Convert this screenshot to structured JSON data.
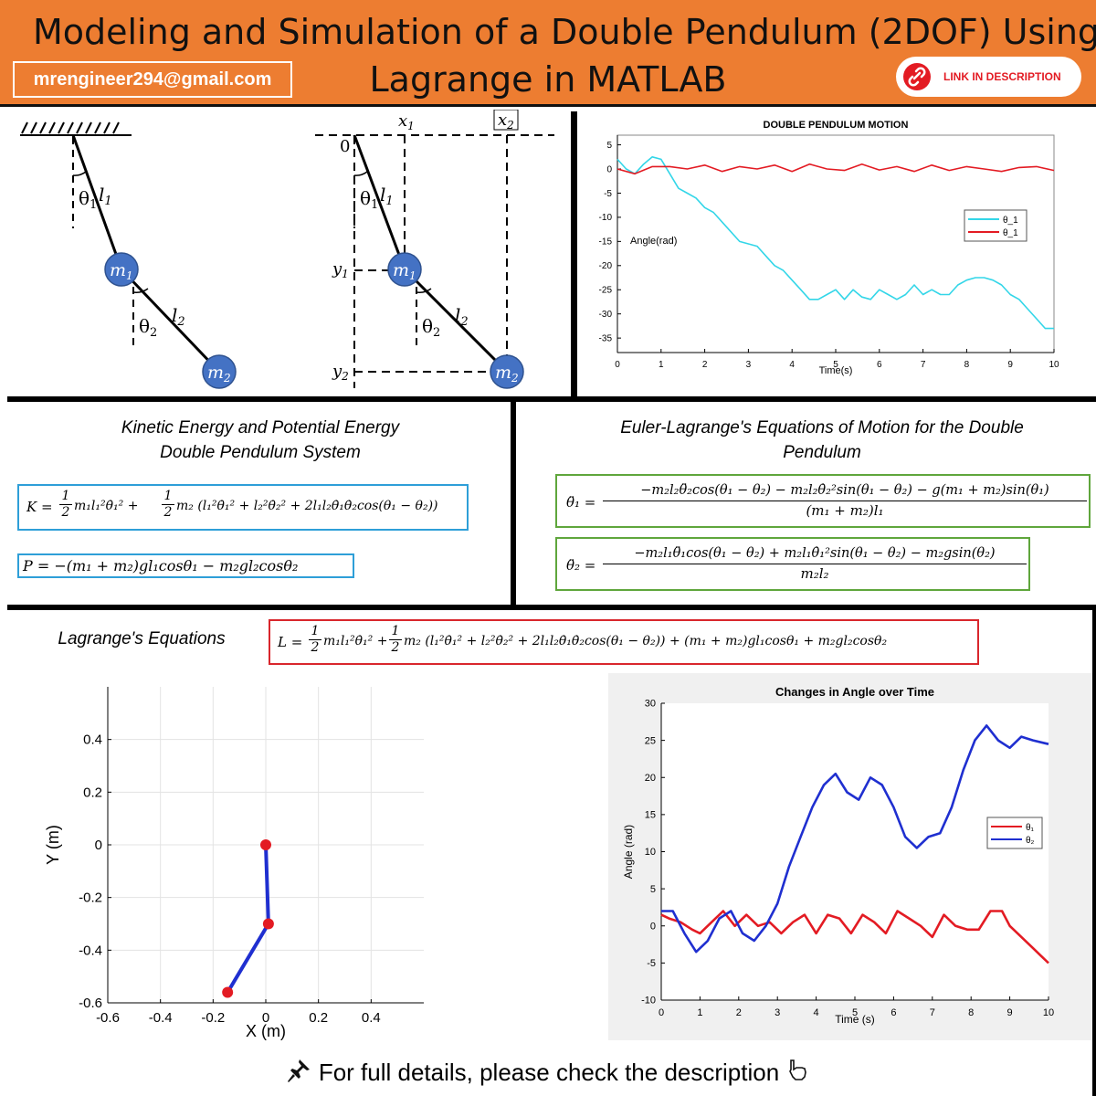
{
  "header": {
    "title_line1": "Modeling and Simulation of a Double Pendulum  (2DOF) Using",
    "title_line2": "Lagrange in MATLAB",
    "email": "mrengineer294@gmail.com",
    "link_label": "LINK IN DESCRIPTION"
  },
  "diagram": {
    "theta1": "θ",
    "theta1_sub": "1",
    "theta2": "θ",
    "theta2_sub": "2",
    "l1": "l",
    "l1_sub": "1",
    "l2": "l",
    "l2_sub": "2",
    "m1": "m",
    "m1_sub": "1",
    "m2": "m",
    "m2_sub": "2",
    "origin": "0",
    "x1": "x",
    "x1_sub": "1",
    "x2": "x",
    "x2_sub": "2",
    "y1": "y",
    "y1_sub": "1",
    "y2": "y",
    "y2_sub": "2"
  },
  "energy": {
    "title_line1": "Kinetic Energy and Potential Energy",
    "title_line2": "Double Pendulum System",
    "K_prefix": "K =",
    "K_body": "m₁l₁²θ̇₁² +",
    "K_body2": "m₂ (l₁²θ̇₁² + l₂²θ̇₂² + 2l₁l₂θ̇₁θ̇₂cos(θ₁ − θ₂))",
    "P": "P = −(m₁ + m₂)gl₁cosθ₁ − m₂gl₂cosθ₂",
    "half_num": "1",
    "half_den": "2"
  },
  "euler": {
    "title_line1": "Euler-Lagrange's Equations of Motion for the Double",
    "title_line2": "Pendulum",
    "eq1_lhs": "θ̈₁ =",
    "eq1_num": "−m₂l₂θ̈₂cos(θ₁ − θ₂) − m₂l₂θ̇₂²sin(θ₁ − θ₂) − g(m₁ + m₂)sin(θ₁)",
    "eq1_den": "(m₁ + m₂)l₁",
    "eq2_lhs": "θ̈₂ =",
    "eq2_num": "−m₂l₁θ̈₁cos(θ₁ − θ₂) + m₂l₁θ̇₁²sin(θ₁ − θ₂) − m₂gsin(θ₂)",
    "eq2_den": "m₂l₂"
  },
  "lagrange": {
    "title": "Lagrange's Equations",
    "L_prefix": "L =",
    "L_body": "m₁l₁²θ̇₁² +",
    "L_body2": "m₂ (l₁²θ̇₁² + l₂²θ̇₂² + 2l₁l₂θ̇₁θ̇₂cos(θ₁ − θ₂)) + (m₁ + m₂)gl₁cosθ₁ + m₂gl₂cosθ₂"
  },
  "footer": {
    "text": "For full details, please check the description"
  },
  "colors": {
    "header_bg": "#ed7d31",
    "pendulum_mass": "#4472c4",
    "box_blue": "#2e9fd8",
    "box_green": "#5fa63c",
    "box_red": "#d9262c",
    "cyan": "#33d6e8",
    "red": "#e31b23",
    "blue": "#1f2fd0"
  },
  "chart_data": [
    {
      "type": "line",
      "title": "DOUBLE PENDULUM MOTION",
      "xlabel": "Time(s)",
      "ylabel": "Angle(rad)",
      "xlim": [
        0,
        10
      ],
      "ylim": [
        -38,
        7
      ],
      "xticks": [
        "0",
        "1",
        "2",
        "3",
        "4",
        "5",
        "6",
        "7",
        "8",
        "9",
        "10"
      ],
      "yticks": [
        "5",
        "0",
        "-5",
        "-10",
        "-15",
        "-20",
        "-25",
        "-30",
        "-35"
      ],
      "legend_position": "right",
      "grid": false,
      "series": [
        {
          "name": "θ_1",
          "color": "#33d6e8",
          "x": [
            0,
            0.2,
            0.4,
            0.6,
            0.8,
            1.0,
            1.2,
            1.4,
            1.6,
            1.8,
            2.0,
            2.2,
            2.4,
            2.6,
            2.8,
            3.0,
            3.2,
            3.4,
            3.6,
            3.8,
            4.0,
            4.2,
            4.4,
            4.6,
            4.8,
            5.0,
            5.2,
            5.4,
            5.6,
            5.8,
            6.0,
            6.2,
            6.4,
            6.6,
            6.8,
            7.0,
            7.2,
            7.4,
            7.6,
            7.8,
            8.0,
            8.2,
            8.4,
            8.6,
            8.8,
            9.0,
            9.2,
            9.4,
            9.6,
            9.8,
            10.0
          ],
          "y": [
            2,
            0,
            -1,
            1,
            2.5,
            2,
            -1,
            -4,
            -5,
            -6,
            -8,
            -9,
            -11,
            -13,
            -15,
            -15.5,
            -16,
            -18,
            -20,
            -21,
            -23,
            -25,
            -27,
            -27,
            -26,
            -25,
            -27,
            -25,
            -26.5,
            -27,
            -25,
            -26,
            -27,
            -26,
            -24,
            -26,
            -25,
            -26,
            -26,
            -24,
            -23,
            -22.5,
            -22.5,
            -23,
            -24,
            -26,
            -27,
            -29,
            -31,
            -33,
            -33
          ]
        },
        {
          "name": "θ_1",
          "color": "#e31b23",
          "x": [
            0,
            0.4,
            0.8,
            1.2,
            1.6,
            2.0,
            2.4,
            2.8,
            3.2,
            3.6,
            4.0,
            4.4,
            4.8,
            5.2,
            5.6,
            6.0,
            6.4,
            6.8,
            7.2,
            7.6,
            8.0,
            8.4,
            8.8,
            9.2,
            9.6,
            10.0
          ],
          "y": [
            0,
            -1,
            0.5,
            0.5,
            0,
            0.8,
            -0.5,
            0.5,
            0,
            0.8,
            -0.5,
            1,
            0,
            -0.3,
            1,
            -0.2,
            0.5,
            -0.5,
            0.8,
            -0.3,
            0.5,
            0,
            -0.5,
            0.3,
            0.5,
            -0.3
          ]
        }
      ]
    },
    {
      "type": "line",
      "title": "",
      "xlabel": "X (m)",
      "ylabel": "Y (m)",
      "xlim": [
        -0.6,
        0.6
      ],
      "ylim": [
        -0.6,
        0.6
      ],
      "xticks": [
        "-0.6",
        "-0.4",
        "-0.2",
        "0",
        "0.2",
        "0.4"
      ],
      "yticks": [
        "0.4",
        "0.2",
        "0",
        "-0.2",
        "-0.4",
        "-0.6"
      ],
      "grid": true,
      "series": [
        {
          "name": "",
          "color": "#1f2fd0",
          "x": [
            0,
            0.01,
            -0.145
          ],
          "y": [
            0,
            -0.3,
            -0.56
          ]
        }
      ]
    },
    {
      "type": "line",
      "title": "Changes in Angle over Time",
      "xlabel": "Time (s)",
      "ylabel": "Angle (rad)",
      "xlim": [
        0,
        10
      ],
      "ylim": [
        -10,
        30
      ],
      "xticks": [
        "0",
        "1",
        "2",
        "3",
        "4",
        "5",
        "6",
        "7",
        "8",
        "9",
        "10"
      ],
      "yticks": [
        "30",
        "25",
        "20",
        "15",
        "10",
        "5",
        "0",
        "-5",
        "-10"
      ],
      "legend_position": "right",
      "grid": false,
      "series": [
        {
          "name": "θ₁",
          "color": "#e31b23",
          "x": [
            0,
            0.2,
            0.5,
            0.8,
            1.0,
            1.3,
            1.6,
            1.9,
            2.2,
            2.5,
            2.8,
            3.1,
            3.4,
            3.7,
            4.0,
            4.3,
            4.6,
            4.9,
            5.2,
            5.5,
            5.8,
            6.1,
            6.4,
            6.7,
            7.0,
            7.3,
            7.6,
            7.9,
            8.2,
            8.5,
            8.8,
            9.0,
            9.3,
            9.6,
            9.8,
            10.0
          ],
          "y": [
            1.5,
            1,
            0.5,
            -0.5,
            -1,
            0.5,
            2,
            0,
            1.5,
            0,
            0.5,
            -1,
            0.5,
            1.5,
            -1,
            1.5,
            1,
            -1,
            1.5,
            0.5,
            -1,
            2,
            1,
            0,
            -1.5,
            1.5,
            0,
            -0.5,
            -0.5,
            2,
            2,
            0,
            -1.5,
            -3,
            -4,
            -5
          ]
        },
        {
          "name": "θ₂",
          "color": "#1f2fd0",
          "x": [
            0,
            0.3,
            0.6,
            0.9,
            1.2,
            1.5,
            1.8,
            2.1,
            2.4,
            2.7,
            3.0,
            3.3,
            3.6,
            3.9,
            4.2,
            4.5,
            4.8,
            5.1,
            5.4,
            5.7,
            6.0,
            6.3,
            6.6,
            6.9,
            7.2,
            7.5,
            7.8,
            8.1,
            8.4,
            8.7,
            9.0,
            9.3,
            9.6,
            10.0
          ],
          "y": [
            2,
            2,
            -1,
            -3.5,
            -2,
            1,
            2,
            -1,
            -2,
            0,
            3,
            8,
            12,
            16,
            19,
            20.5,
            18,
            17,
            20,
            19,
            16,
            12,
            10.5,
            12,
            12.5,
            16,
            21,
            25,
            27,
            25,
            24,
            25.5,
            25,
            24.5
          ]
        }
      ]
    }
  ]
}
